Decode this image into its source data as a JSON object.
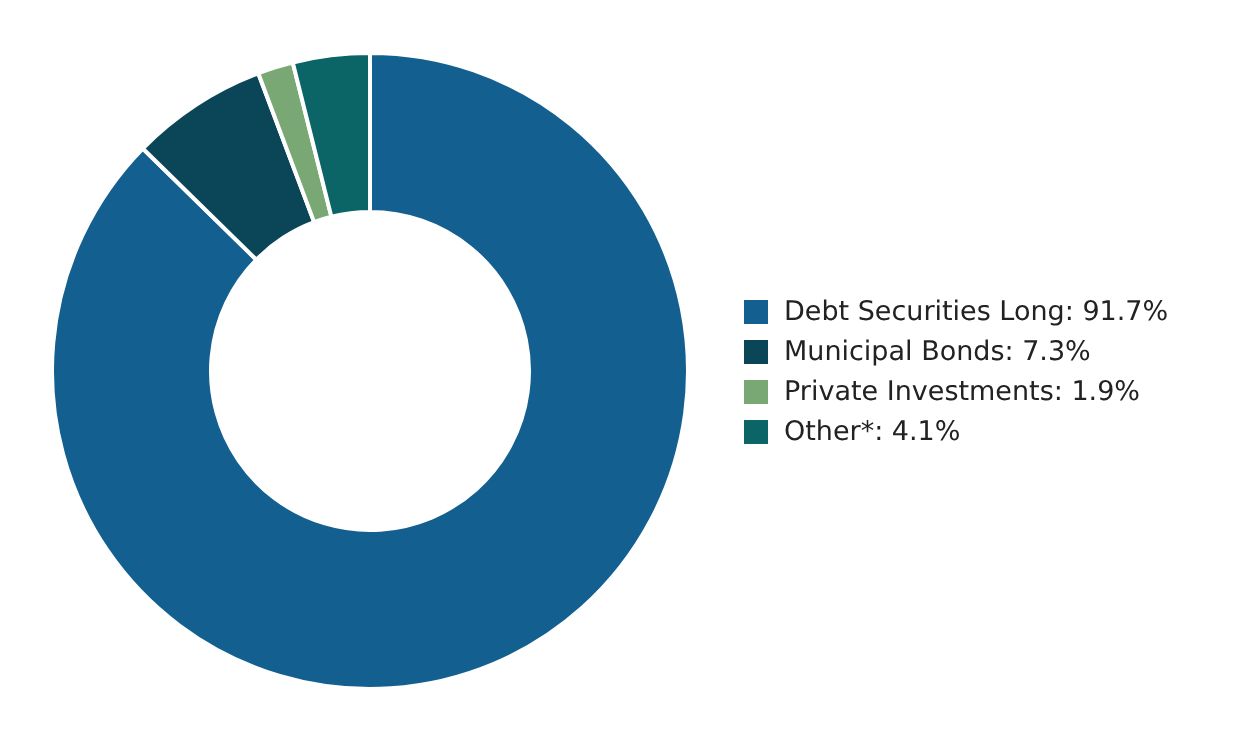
{
  "chart_data": {
    "type": "donut",
    "categories": [
      "Debt Securities Long",
      "Municipal Bonds",
      "Private Investments",
      "Other*"
    ],
    "values": [
      91.7,
      7.3,
      1.9,
      4.1
    ],
    "value_labels": [
      "91.7%",
      "7.3%",
      "1.9%",
      "4.1%"
    ],
    "colors": [
      "#136090",
      "#0a4558",
      "#7aa874",
      "#0b6466"
    ],
    "legend": "right"
  }
}
